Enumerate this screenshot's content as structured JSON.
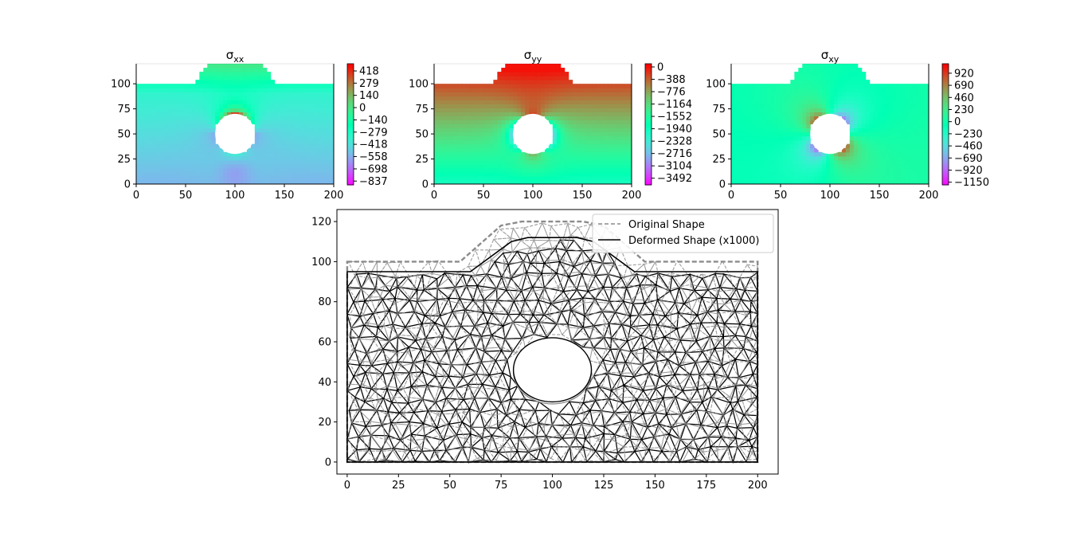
{
  "chart_data": [
    {
      "type": "heatmap",
      "title": "σ",
      "title_sub": "xx",
      "xlim": [
        0,
        200
      ],
      "ylim": [
        0,
        120
      ],
      "xticks": [
        0,
        50,
        100,
        150,
        200
      ],
      "yticks": [
        0,
        25,
        50,
        75,
        100
      ],
      "colormap": "rainbow",
      "colorbar_ticks": [
        418,
        279,
        140,
        0,
        -140,
        -279,
        -418,
        -558,
        -698,
        -837
      ],
      "colorbar_range": [
        -880,
        500
      ],
      "field_model": {
        "background": 0.15,
        "top": 0.38,
        "hole_side": -0.7,
        "hole_top": 0.9
      },
      "hole": {
        "cx": 100,
        "cy": 50,
        "r": 20
      }
    },
    {
      "type": "heatmap",
      "title": "σ",
      "title_sub": "yy",
      "xlim": [
        0,
        200
      ],
      "ylim": [
        0,
        120
      ],
      "xticks": [
        0,
        50,
        100,
        150,
        200
      ],
      "yticks": [
        0,
        25,
        50,
        75,
        100
      ],
      "colormap": "rainbow",
      "colorbar_ticks": [
        0,
        -388,
        -776,
        -1164,
        -1552,
        -1940,
        -2328,
        -2716,
        -3104,
        -3492
      ],
      "colorbar_range": [
        -3700,
        100
      ],
      "field_model": {
        "background": 0.55,
        "top": 0.95,
        "hole_side": -0.55,
        "hole_top": 0.3
      },
      "hole": {
        "cx": 100,
        "cy": 50,
        "r": 20
      }
    },
    {
      "type": "heatmap",
      "title": "σ",
      "title_sub": "xy",
      "xlim": [
        0,
        200
      ],
      "ylim": [
        0,
        120
      ],
      "xticks": [
        0,
        50,
        100,
        150,
        200
      ],
      "yticks": [
        0,
        25,
        50,
        75,
        100
      ],
      "colormap": "rainbow",
      "colorbar_ticks": [
        920,
        690,
        460,
        230,
        0,
        -230,
        -460,
        -690,
        -920,
        -1150
      ],
      "colorbar_range": [
        -1200,
        1100
      ],
      "field_model": {
        "background": 0.5,
        "top": 0.5,
        "hole_quad": 0.35
      },
      "hole": {
        "cx": 100,
        "cy": 50,
        "r": 20
      }
    },
    {
      "type": "line",
      "xlim": [
        -5,
        210
      ],
      "ylim": [
        -6,
        126
      ],
      "xticks": [
        0,
        25,
        50,
        75,
        100,
        125,
        150,
        175,
        200
      ],
      "yticks": [
        0,
        20,
        40,
        60,
        80,
        100,
        120
      ],
      "legend_position": "top-right",
      "series": [
        {
          "name": "Original Shape",
          "style": "dashed",
          "color": "#8c8c8c",
          "outline": [
            [
              0,
              100
            ],
            [
              55,
              100
            ],
            [
              75,
              118
            ],
            [
              85,
              120
            ],
            [
              115,
              120
            ],
            [
              125,
              118
            ],
            [
              145,
              100
            ],
            [
              200,
              100
            ],
            [
              200,
              0
            ],
            [
              0,
              0
            ]
          ],
          "hole": {
            "cx": 100,
            "cy": 45,
            "rx": 19,
            "ry": 16
          }
        },
        {
          "name": "Deformed Shape (x1000)",
          "style": "solid",
          "color": "#000000",
          "outline": [
            [
              0,
              95
            ],
            [
              60,
              95
            ],
            [
              80,
              110
            ],
            [
              88,
              112
            ],
            [
              112,
              112
            ],
            [
              120,
              110
            ],
            [
              140,
              95
            ],
            [
              200,
              95
            ],
            [
              200,
              0
            ],
            [
              0,
              0
            ]
          ],
          "hole": {
            "cx": 100,
            "cy": 46,
            "rx": 19,
            "ry": 16
          }
        }
      ]
    }
  ]
}
